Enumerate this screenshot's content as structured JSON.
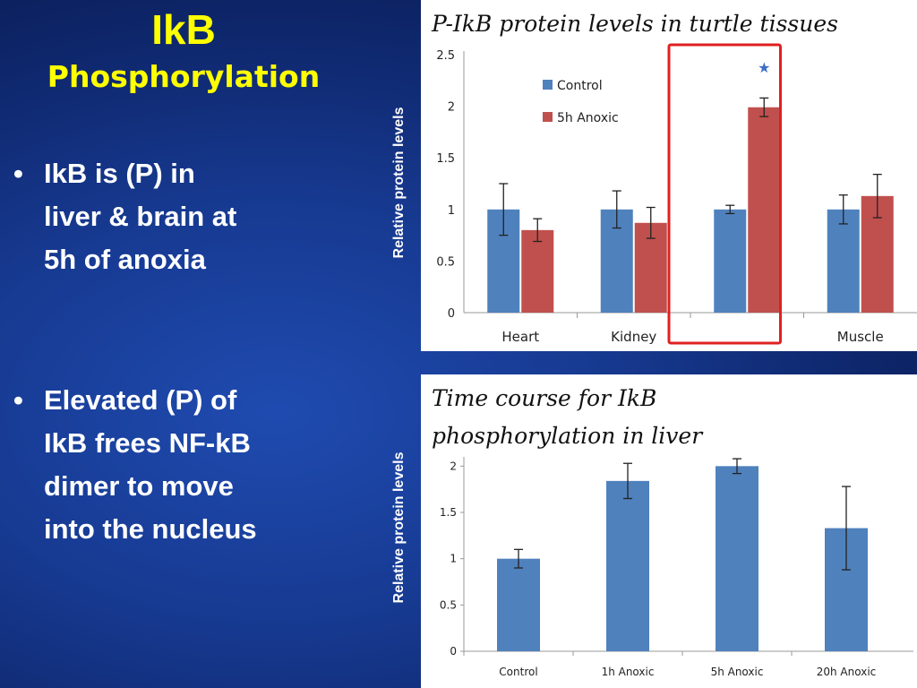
{
  "slide": {
    "title": "IkB",
    "subtitle": "Phosphorylation",
    "bullet_glyph": "•",
    "bullets": [
      {
        "lines": [
          "IkB is (P) in",
          "liver & brain  at",
          "5h of anoxia"
        ]
      },
      {
        "lines": [
          "Elevated (P) of",
          "IkB  frees NF-kB",
          "dimer to move",
          "into the nucleus"
        ]
      }
    ]
  },
  "colors": {
    "title": "#ffff00",
    "control_bar": "#4f81bd",
    "anoxic_bar": "#c0504d",
    "highlight_box": "#e02020",
    "star": "#3b6fc4"
  },
  "chart_data": [
    {
      "type": "bar",
      "title": "P-IkB protein levels in turtle tissues",
      "ylabel": "Relative protein levels",
      "xlabel": "",
      "categories": [
        "Heart",
        "Kidney",
        "",
        "Muscle"
      ],
      "series": [
        {
          "name": "Control",
          "values": [
            1.0,
            1.0,
            1.0,
            1.0
          ],
          "errors": [
            0.25,
            0.18,
            0.04,
            0.14
          ]
        },
        {
          "name": "5h Anoxic",
          "values": [
            0.8,
            0.87,
            1.99,
            1.13
          ],
          "errors": [
            0.11,
            0.15,
            0.09,
            0.21
          ]
        }
      ],
      "ylim": [
        0,
        2.5
      ],
      "yticks": [
        "0",
        "0.5",
        "1",
        "1.5",
        "2",
        "2.5"
      ],
      "legend": "top-left",
      "grid": false,
      "annotations": [
        {
          "type": "star",
          "glyph": "★",
          "category_index": 2,
          "series": "5h Anoxic"
        },
        {
          "type": "highlight-box",
          "category_index": 2
        }
      ]
    },
    {
      "type": "bar",
      "title": "Time course for IkB phosphorylation in liver",
      "title_lines": [
        "Time course for IkB",
        "phosphorylation in liver"
      ],
      "ylabel": "Relative protein levels",
      "xlabel": "",
      "categories": [
        "Control",
        "1h Anoxic",
        "5h Anoxic",
        "20h Anoxic"
      ],
      "series": [
        {
          "values": [
            1.0,
            1.84,
            2.0,
            1.33
          ],
          "errors": [
            0.1,
            0.19,
            0.08,
            0.45
          ]
        }
      ],
      "ylim": [
        0,
        2.1
      ],
      "yticks": [
        "0",
        "0.5",
        "1",
        "1.5",
        "2"
      ],
      "grid": false
    }
  ]
}
